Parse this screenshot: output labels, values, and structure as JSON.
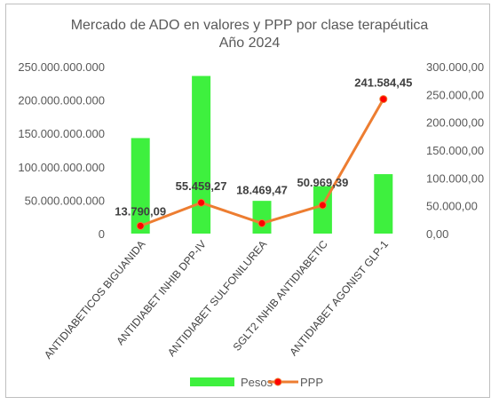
{
  "chart_data": {
    "type": "bar+line",
    "title": "Mercado de ADO en valores y PPP por clase terapéutica",
    "subtitle": "Año 2024",
    "categories": [
      "ANTIDIABETICOS BIGUANIDA",
      "ANTIDIABET INHIB DPP-IV",
      "ANTIDIABET SULFONILUREA",
      "SGLT2 INHIB ANTIDIABETIC",
      "ANTIDIABET AGONIST GLP-1"
    ],
    "series": [
      {
        "name": "Pesos",
        "type": "bar",
        "axis": "left",
        "color": "#3ef03e",
        "values": [
          143000000000,
          236000000000,
          49000000000,
          71000000000,
          89000000000
        ]
      },
      {
        "name": "PPP",
        "type": "line",
        "axis": "right",
        "color": "#ed7d31",
        "marker_color": "#ff0000",
        "values": [
          13790.09,
          55459.27,
          18469.47,
          50969.39,
          241584.45
        ],
        "labels": [
          "13.790,09",
          "55.459,27",
          "18.469,47",
          "50.969,39",
          "241.584,45"
        ]
      }
    ],
    "left_axis": {
      "ylim": [
        0,
        250000000000
      ],
      "ticks": [
        0,
        50000000000,
        100000000000,
        150000000000,
        200000000000,
        250000000000
      ],
      "tick_labels": [
        "0",
        "50.000.000.000",
        "100.000.000.000",
        "150.000.000.000",
        "200.000.000.000",
        "250.000.000.000"
      ]
    },
    "right_axis": {
      "ylim": [
        0,
        300000
      ],
      "ticks": [
        0,
        50000,
        100000,
        150000,
        200000,
        250000,
        300000
      ],
      "tick_labels": [
        "0,00",
        "50.000,00",
        "100.000,00",
        "150.000,00",
        "200.000,00",
        "250.000,00",
        "300.000,00"
      ]
    },
    "grid": false,
    "legend_position": "bottom"
  }
}
